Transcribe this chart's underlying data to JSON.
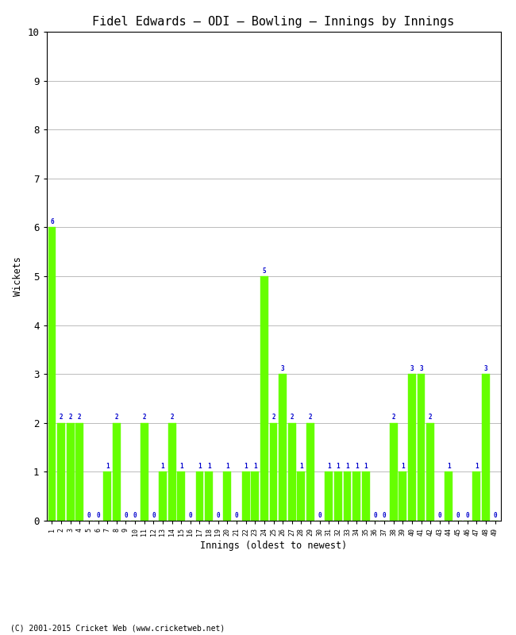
{
  "title": "Fidel Edwards – ODI – Bowling – Innings by Innings",
  "xlabel": "Innings (oldest to newest)",
  "ylabel": "Wickets",
  "footnote": "(C) 2001-2015 Cricket Web (www.cricketweb.net)",
  "ylim": [
    0,
    10
  ],
  "yticks": [
    0,
    1,
    2,
    3,
    4,
    5,
    6,
    7,
    8,
    9,
    10
  ],
  "bar_color": "#66ff00",
  "bar_edge_color": "#66ff00",
  "label_color": "#0000cc",
  "background_color": "#ffffff",
  "innings_labels": [
    "1",
    "2",
    "3",
    "4",
    "5",
    "6",
    "7",
    "8",
    "9",
    "10",
    "11",
    "12",
    "13",
    "14",
    "15",
    "16",
    "17",
    "18",
    "19",
    "20",
    "21",
    "22",
    "23",
    "24",
    "25",
    "26",
    "27",
    "28",
    "29",
    "30",
    "31",
    "32",
    "33",
    "34",
    "35",
    "36",
    "37",
    "38",
    "39",
    "40",
    "41",
    "42",
    "43",
    "44",
    "45",
    "46",
    "47",
    "48",
    "49"
  ],
  "wickets": [
    6,
    2,
    2,
    2,
    0,
    0,
    1,
    2,
    0,
    0,
    2,
    0,
    1,
    2,
    1,
    0,
    1,
    1,
    0,
    1,
    0,
    1,
    1,
    5,
    2,
    3,
    2,
    1,
    2,
    0,
    1,
    1,
    1,
    1,
    1,
    0,
    0,
    2,
    1,
    3,
    3,
    2,
    0,
    1,
    0,
    0,
    1,
    3,
    0
  ]
}
